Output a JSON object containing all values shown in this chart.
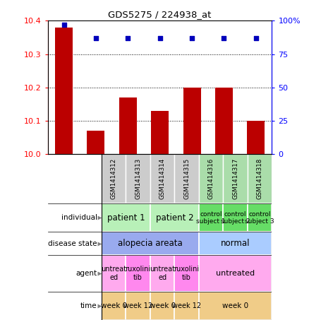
{
  "title": "GDS5275 / 224938_at",
  "samples": [
    "GSM1414312",
    "GSM1414313",
    "GSM1414314",
    "GSM1414315",
    "GSM1414316",
    "GSM1414317",
    "GSM1414318"
  ],
  "bar_values": [
    10.38,
    10.07,
    10.17,
    10.13,
    10.2,
    10.2,
    10.1
  ],
  "dot_values": [
    97,
    87,
    87,
    87,
    87,
    87,
    87
  ],
  "ylim_left": [
    10.0,
    10.4
  ],
  "ylim_right": [
    0,
    100
  ],
  "yticks_left": [
    10.0,
    10.1,
    10.2,
    10.3,
    10.4
  ],
  "yticks_right": [
    0,
    25,
    50,
    75,
    100
  ],
  "ytick_labels_right": [
    "0",
    "25",
    "50",
    "75",
    "100%"
  ],
  "bar_color": "#bb0000",
  "dot_color": "#0000bb",
  "individual_groups": [
    {
      "label": "patient 1",
      "cols": [
        0,
        1
      ],
      "color": "#b8f0b8",
      "fontsize": 8.5
    },
    {
      "label": "patient 2",
      "cols": [
        2,
        3
      ],
      "color": "#b8f0b8",
      "fontsize": 8.5
    },
    {
      "label": "control\nsubject 1",
      "cols": [
        4
      ],
      "color": "#66dd66",
      "fontsize": 6.5
    },
    {
      "label": "control\nsubject 2",
      "cols": [
        5
      ],
      "color": "#66dd66",
      "fontsize": 6.5
    },
    {
      "label": "control\nsubject 3",
      "cols": [
        6
      ],
      "color": "#66dd66",
      "fontsize": 6.5
    }
  ],
  "disease_groups": [
    {
      "label": "alopecia areata",
      "cols": [
        0,
        1,
        2,
        3
      ],
      "color": "#99aaee",
      "fontsize": 8.5
    },
    {
      "label": "normal",
      "cols": [
        4,
        5,
        6
      ],
      "color": "#aaccff",
      "fontsize": 8.5
    }
  ],
  "agent_groups": [
    {
      "label": "untreat\ned",
      "cols": [
        0
      ],
      "color": "#ffaaee",
      "fontsize": 7
    },
    {
      "label": "ruxolini\ntib",
      "cols": [
        1
      ],
      "color": "#ff88ee",
      "fontsize": 7
    },
    {
      "label": "untreat\ned",
      "cols": [
        2
      ],
      "color": "#ffaaee",
      "fontsize": 7
    },
    {
      "label": "ruxolini\ntib",
      "cols": [
        3
      ],
      "color": "#ff88ee",
      "fontsize": 7
    },
    {
      "label": "untreated",
      "cols": [
        4,
        5,
        6
      ],
      "color": "#ffaaee",
      "fontsize": 8
    }
  ],
  "time_groups": [
    {
      "label": "week 0",
      "cols": [
        0
      ],
      "color": "#f0cc88",
      "fontsize": 7.5
    },
    {
      "label": "week 12",
      "cols": [
        1
      ],
      "color": "#f0cc88",
      "fontsize": 7
    },
    {
      "label": "week 0",
      "cols": [
        2
      ],
      "color": "#f0cc88",
      "fontsize": 7.5
    },
    {
      "label": "week 12",
      "cols": [
        3
      ],
      "color": "#f0cc88",
      "fontsize": 7
    },
    {
      "label": "week 0",
      "cols": [
        4,
        5,
        6
      ],
      "color": "#f0cc88",
      "fontsize": 7.5
    }
  ],
  "sample_bg_colors": [
    "#cccccc",
    "#cccccc",
    "#cccccc",
    "#cccccc",
    "#aaddaa",
    "#aaddaa",
    "#aaddaa"
  ]
}
